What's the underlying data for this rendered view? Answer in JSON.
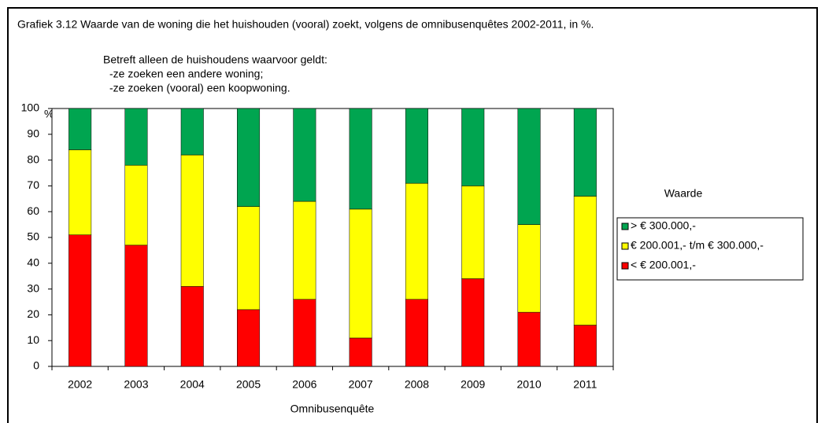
{
  "chart_data": {
    "type": "stacked_bar",
    "title": "Grafiek 3.12 Waarde van de woning die het huishouden (vooral) zoekt, volgens de omnibusenquêtes 2002-2011, in %.",
    "subtitle": [
      "Betreft alleen de huishoudens waarvoor geldt:",
      "-ze zoeken een andere woning;",
      "-ze zoeken (vooral) een koopwoning."
    ],
    "y_label": "%",
    "x_label": "Omnibusenquête",
    "legend_title": "Waarde",
    "legend": "right",
    "categories": [
      "2002",
      "2003",
      "2004",
      "2005",
      "2006",
      "2007",
      "2008",
      "2009",
      "2010",
      "2011"
    ],
    "series": [
      {
        "name": "< € 200.001,-",
        "color": "#ff0000",
        "values": [
          51,
          47,
          31,
          22,
          26,
          11,
          26,
          34,
          21,
          16
        ]
      },
      {
        "name": "€ 200.001,- t/m € 300.000,-",
        "color": "#ffff00",
        "values": [
          33,
          31,
          51,
          40,
          38,
          50,
          45,
          36,
          34,
          50
        ]
      },
      {
        "name": "> € 300.000,-",
        "color": "#00a550",
        "values": [
          16,
          22,
          18,
          38,
          36,
          39,
          29,
          30,
          45,
          34
        ]
      }
    ],
    "ylim": [
      0,
      100
    ],
    "yticks": [
      0,
      10,
      20,
      30,
      40,
      50,
      60,
      70,
      80,
      90,
      100
    ]
  }
}
